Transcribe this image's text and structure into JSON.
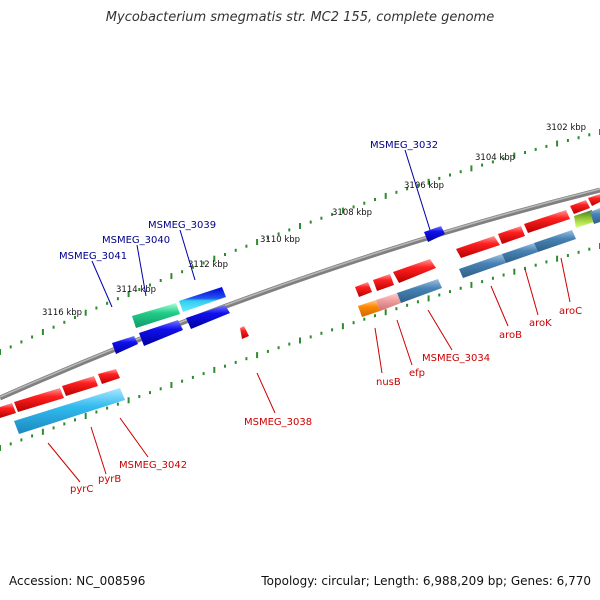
{
  "header": {
    "title": "Mycobacterium smegmatis str. MC2 155, complete genome"
  },
  "footer": {
    "accession": "Accession: NC_008596",
    "summary": "Topology: circular; Length: 6,988,209 bp; Genes: 6,770"
  },
  "colors": {
    "backbone": "#808080",
    "ruler_tick": "#2e8b2e",
    "label_top": "#00008b",
    "label_bottom": "#cc0000",
    "gene_red": "#ee0000",
    "gene_blue": "#0000dd",
    "gene_cyan": "#33bbee",
    "gene_steel": "#4682b4",
    "gene_green": "#22cc88",
    "gene_orange": "#ff8800",
    "gene_pink": "#f0a0a0",
    "gene_lime": "#99cc33"
  },
  "scale": {
    "upper": [
      {
        "label": "3102 kbp"
      },
      {
        "label": "3104 kbp"
      },
      {
        "label": "3106 kbp"
      },
      {
        "label": "3108 kbp"
      },
      {
        "label": "3110 kbp"
      },
      {
        "label": "3112 kbp"
      },
      {
        "label": "3114 kbp"
      },
      {
        "label": "3116 kbp"
      }
    ]
  },
  "gene_labels": {
    "top": [
      {
        "text": "MSMEG_3032"
      },
      {
        "text": "MSMEG_3039"
      },
      {
        "text": "MSMEG_3040"
      },
      {
        "text": "MSMEG_3041"
      }
    ],
    "bottom": [
      {
        "text": "aroC"
      },
      {
        "text": "aroK"
      },
      {
        "text": "aroB"
      },
      {
        "text": "MSMEG_3034"
      },
      {
        "text": "efp"
      },
      {
        "text": "nusB"
      },
      {
        "text": "MSMEG_3038"
      },
      {
        "text": "MSMEG_3042"
      },
      {
        "text": "pyrB"
      },
      {
        "text": "pyrC"
      }
    ]
  }
}
